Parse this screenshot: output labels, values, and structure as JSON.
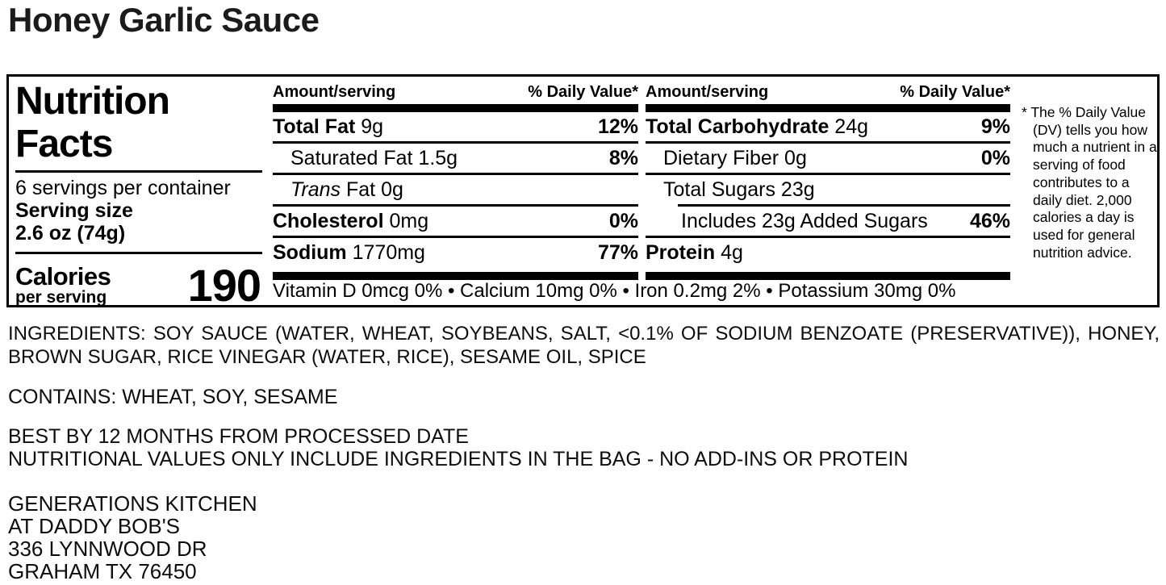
{
  "product_title": "Honey Garlic Sauce",
  "panel": {
    "title_line1": "Nutrition",
    "title_line2": "Facts",
    "servings": "6 servings per container",
    "serving_size_label": "Serving size",
    "serving_size_value": "2.6 oz (74g)",
    "calories_label": "Calories",
    "calories_sublabel": "per serving",
    "calories_value": "190",
    "header": {
      "amount": "Amount/serving",
      "dv": "% Daily Value*"
    },
    "col1": {
      "rows": [
        {
          "bold": "Total Fat",
          "italic": "",
          "rest": " 9g",
          "dv": "12%"
        },
        {
          "bold": "",
          "italic": "",
          "rest": "Saturated Fat 1.5g",
          "dv": "8%"
        },
        {
          "bold": "",
          "italic": "Trans",
          "rest": " Fat 0g",
          "dv": ""
        },
        {
          "bold": "Cholesterol",
          "italic": "",
          "rest": " 0mg",
          "dv": "0%"
        },
        {
          "bold": "Sodium",
          "italic": "",
          "rest": " 1770mg",
          "dv": "77%"
        }
      ]
    },
    "col2": {
      "rows": [
        {
          "bold": "Total Carbohydrate",
          "italic": "",
          "rest": " 24g",
          "dv": "9%"
        },
        {
          "bold": "",
          "italic": "",
          "rest": "Dietary Fiber 0g",
          "dv": "0%"
        },
        {
          "bold": "",
          "italic": "",
          "rest": "Total Sugars 23g",
          "dv": ""
        },
        {
          "bold": "",
          "italic": "",
          "rest": "Includes 23g Added Sugars",
          "dv": "46%"
        },
        {
          "bold": "Protein",
          "italic": "",
          "rest": " 4g",
          "dv": ""
        }
      ]
    },
    "micronutrients": "Vitamin D 0mcg 0% • Calcium 10mg 0% • Iron 0.2mg 2% • Potassium 30mg 0%",
    "footnote": "* The % Daily Value (DV) tells you how much a nutrient in a serving of food contributes to a daily diet. 2,000 calories a day is used for general nutrition advice."
  },
  "ingredients": {
    "line1": "INGREDIENTS: SOY SAUCE (WATER, WHEAT, SOYBEANS, SALT, <0.1% OF SODIUM BENZOATE (PRESERVATIVE)), HONEY,",
    "line2": "BROWN SUGAR, RICE VINEGAR (WATER, RICE), SESAME OIL, SPICE"
  },
  "contains": "CONTAINS: WHEAT, SOY, SESAME",
  "best_by": "BEST BY 12 MONTHS FROM PROCESSED DATE",
  "disclaimer": "NUTRITIONAL VALUES ONLY INCLUDE INGREDIENTS IN THE BAG - NO ADD-INS OR PROTEIN",
  "address": {
    "lines": [
      "GENERATIONS KITCHEN",
      "AT DADDY BOB'S",
      "336 LYNNWOOD DR",
      "GRAHAM TX 76450"
    ]
  },
  "colors": {
    "text": "#000000",
    "background": "#ffffff"
  }
}
